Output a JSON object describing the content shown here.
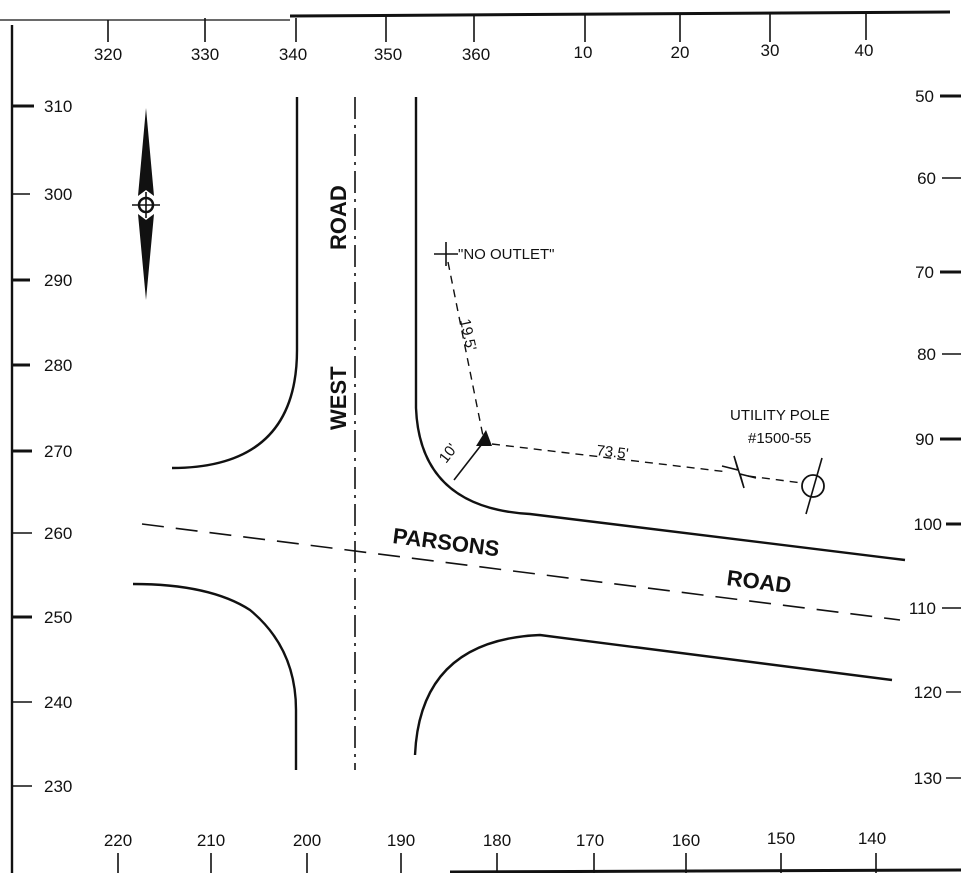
{
  "compass": {
    "top_labels": [
      "320",
      "330",
      "340",
      "350",
      "360",
      "10",
      "20",
      "30",
      "40"
    ],
    "right_labels": [
      "50",
      "60",
      "70",
      "80",
      "90",
      "100",
      "110",
      "120",
      "130"
    ],
    "bottom_labels": [
      "220",
      "210",
      "200",
      "190",
      "180",
      "170",
      "160",
      "150",
      "140"
    ],
    "left_labels": [
      "310",
      "300",
      "290",
      "280",
      "270",
      "260",
      "250",
      "240",
      "230"
    ]
  },
  "roads": {
    "west_road_word1": "WEST",
    "west_road_word2": "ROAD",
    "parsons_road_word1": "PARSONS",
    "parsons_road_word2": "ROAD"
  },
  "annotations": {
    "sign": "\"NO OUTLET\"",
    "pole_label_line1": "UTILITY POLE",
    "pole_label_line2": "#1500-55"
  },
  "dimensions": {
    "to_sign": "19.5'",
    "to_curb": "10'",
    "to_pole": "73.5'"
  },
  "icons": {
    "north_arrow": "north-arrow-icon",
    "reference_point": "reference-point-icon",
    "utility_pole": "utility-pole-icon",
    "sign_post": "sign-post-icon",
    "break_symbol": "break-symbol-icon"
  }
}
